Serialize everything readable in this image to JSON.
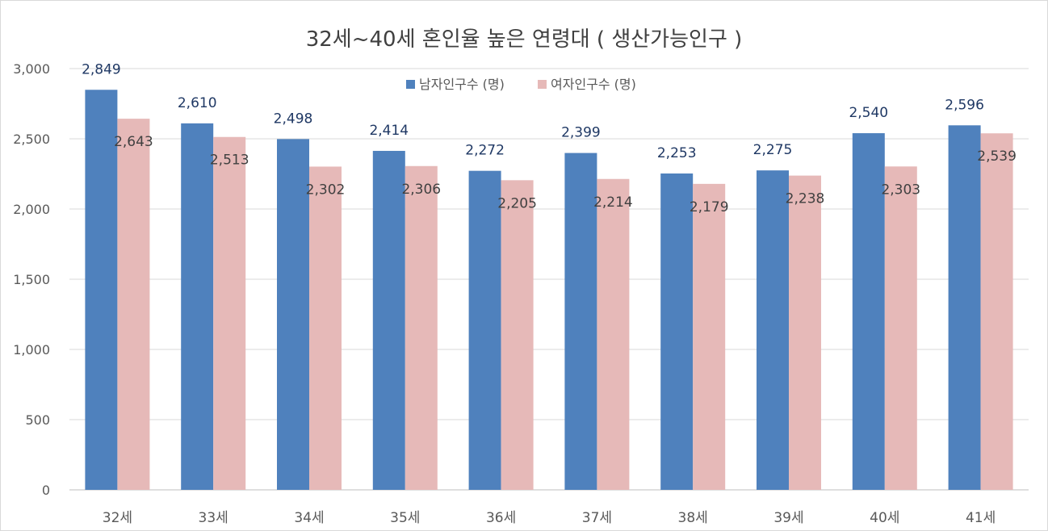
{
  "chart_data": {
    "type": "bar",
    "title": "32세~40세 혼인율 높은 연령대 ( 생산가능인구 )",
    "categories": [
      "32세",
      "33세",
      "34세",
      "35세",
      "36세",
      "37세",
      "38세",
      "39세",
      "40세",
      "41세"
    ],
    "series": [
      {
        "name": "남자인구수 (명)",
        "color": "#4f81bd",
        "values": [
          2849,
          2610,
          2498,
          2414,
          2272,
          2399,
          2253,
          2275,
          2540,
          2596
        ],
        "labels": [
          "2,849",
          "2,610",
          "2,498",
          "2,414",
          "2,272",
          "2,399",
          "2,253",
          "2,275",
          "2,540",
          "2,596"
        ]
      },
      {
        "name": "여자인구수 (명)",
        "color": "#e6b9b8",
        "values": [
          2643,
          2513,
          2302,
          2306,
          2205,
          2214,
          2179,
          2238,
          2303,
          2539
        ],
        "labels": [
          "2,643",
          "2,513",
          "2,302",
          "2,306",
          "2,205",
          "2,214",
          "2,179",
          "2,238",
          "2,303",
          "2,539"
        ]
      }
    ],
    "ylim": [
      0,
      3000
    ],
    "yticks": [
      0,
      500,
      1000,
      1500,
      2000,
      2500,
      3000
    ],
    "ytick_labels": [
      "0",
      "500",
      "1,000",
      "1,500",
      "2,000",
      "2,500",
      "3,000"
    ],
    "grid": true,
    "legend_position": "top-center",
    "xlabel": "",
    "ylabel": ""
  }
}
